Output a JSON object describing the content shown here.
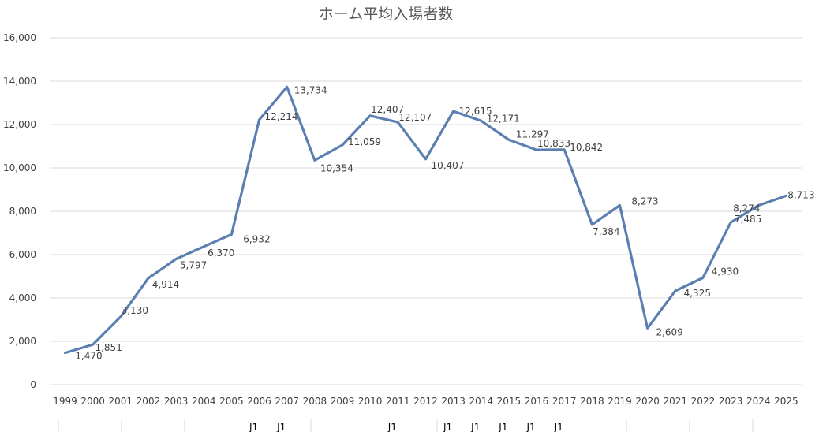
{
  "chart_data": {
    "type": "line",
    "title": "ホーム平均入場者数",
    "xlabel": "",
    "ylabel": "",
    "ylim": [
      0,
      16000
    ],
    "yticks": [
      "0",
      "2,000",
      "4,000",
      "6,000",
      "8,000",
      "10,000",
      "12,000",
      "14,000",
      "16,000"
    ],
    "grid": true,
    "legend": "none",
    "color": "#5b7fb0",
    "categories": [
      "1999",
      "2000",
      "2001",
      "2002",
      "2003",
      "2004",
      "2005",
      "2006",
      "2007",
      "2008",
      "2009",
      "2010",
      "2011",
      "2012",
      "2013",
      "2014",
      "2015",
      "2016",
      "2017",
      "2018",
      "2019",
      "2020",
      "2021",
      "2022",
      "2023",
      "2024",
      "2025"
    ],
    "values": [
      1470,
      1851,
      3130,
      4914,
      5797,
      6370,
      6932,
      12214,
      13734,
      10354,
      11059,
      12407,
      12107,
      10407,
      12615,
      12171,
      11297,
      10833,
      10842,
      7384,
      8273,
      2609,
      4325,
      4930,
      7485,
      8274,
      8713
    ],
    "data_labels": [
      "1,470",
      "1,851",
      "3,130",
      "4,914",
      "5,797",
      "6,370",
      "6,932",
      "12,214",
      "13,734",
      "10,354",
      "11,059",
      "12,407",
      "12,107",
      "10,407",
      "12,615",
      "12,171",
      "11,297",
      "10,833",
      "10,842",
      "7,384",
      "8,273",
      "2,609",
      "4,325",
      "4,930",
      "7,485",
      "8,274",
      "8,713"
    ],
    "division_row": [
      "",
      "",
      "",
      "",
      "",
      "",
      "",
      "J1",
      "J1",
      "",
      "",
      "",
      "J1",
      "",
      "J1",
      "J1",
      "J1",
      "J1",
      "J1",
      "",
      "",
      "",
      "",
      "",
      "",
      "",
      ""
    ]
  }
}
